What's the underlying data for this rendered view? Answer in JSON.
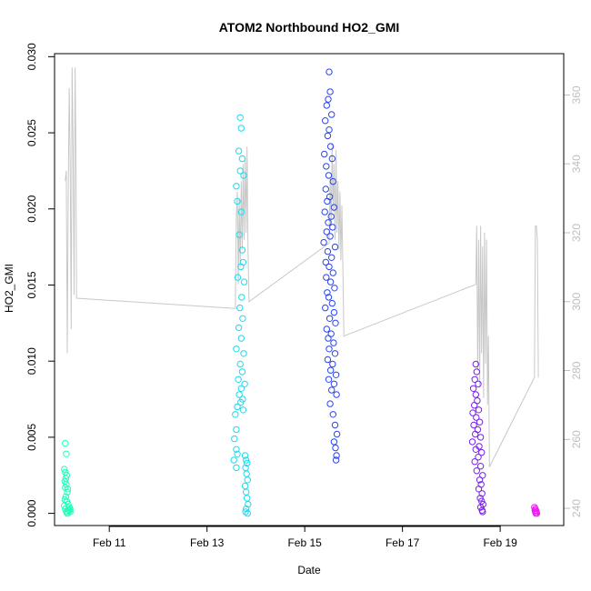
{
  "chart_data": {
    "type": "scatter",
    "title": "ATOM2 Northbound HO2_GMI",
    "xlabel": "Date",
    "ylabel": "HO2_GMI",
    "x_unit": "days (February)",
    "xlim": [
      9.88,
      20.3
    ],
    "ylim": [
      -0.0008,
      0.0302
    ],
    "yticks": [
      0.0,
      0.005,
      0.01,
      0.015,
      0.02,
      0.025,
      0.03
    ],
    "ytick_labels": [
      "0.000",
      "0.005",
      "0.010",
      "0.015",
      "0.020",
      "0.025",
      "0.030"
    ],
    "xticks": [
      11,
      13,
      15,
      17,
      19
    ],
    "xtick_labels": [
      "Feb 11",
      "Feb 13",
      "Feb 15",
      "Feb 17",
      "Feb 19"
    ],
    "y2lim": [
      235,
      372
    ],
    "y2ticks": [
      240,
      260,
      280,
      300,
      320,
      340,
      360
    ],
    "y2tick_labels": [
      "240",
      "260",
      "280",
      "300",
      "320",
      "340",
      "360"
    ],
    "grid": false,
    "point_style": "open circle",
    "colors": {
      "line": "#c8c8c8",
      "right_axis": "#bebebe",
      "axis": "#000000",
      "box": "#000000"
    },
    "series": [
      {
        "color": "#1fffb8",
        "x": [
          10.1,
          10.12,
          10.08,
          10.1,
          10.13,
          10.11,
          10.09,
          10.12,
          10.1,
          10.15,
          10.14,
          10.11,
          10.09,
          10.13,
          10.16,
          10.18,
          10.2,
          10.17,
          10.15,
          10.12,
          10.1,
          10.08,
          10.19,
          10.2,
          10.14
        ],
        "y": [
          0.0046,
          0.0039,
          0.0029,
          0.0027,
          0.0025,
          0.0023,
          0.0021,
          0.0019,
          0.0017,
          0.0016,
          0.0014,
          0.0011,
          0.0009,
          0.0008,
          0.0006,
          0.0004,
          0.0003,
          0.0002,
          0.0001,
          0.0001,
          0.0003,
          0.0005,
          0.0002,
          0.0001,
          0.0
        ]
      },
      {
        "color": "#19dcf0",
        "x": [
          13.68,
          13.7,
          13.65,
          13.72,
          13.68,
          13.75,
          13.6,
          13.62,
          13.7,
          13.66,
          13.72,
          13.74,
          13.69,
          13.63,
          13.76,
          13.71,
          13.67,
          13.73,
          13.65,
          13.7,
          13.6,
          13.75,
          13.68,
          13.72,
          13.64,
          13.77,
          13.7,
          13.66,
          13.73,
          13.69,
          13.62,
          13.74,
          13.58,
          13.6,
          13.56,
          13.6,
          13.62,
          13.55,
          13.6,
          13.78,
          13.8,
          13.82,
          13.79,
          13.81,
          13.83,
          13.78,
          13.8,
          13.82,
          13.84,
          13.8,
          13.79,
          13.83
        ],
        "y": [
          0.026,
          0.0253,
          0.0238,
          0.0233,
          0.0225,
          0.0222,
          0.0215,
          0.0205,
          0.0198,
          0.0183,
          0.0173,
          0.0165,
          0.0162,
          0.0155,
          0.0152,
          0.0142,
          0.0135,
          0.0128,
          0.0122,
          0.0115,
          0.0108,
          0.0105,
          0.0098,
          0.0093,
          0.0088,
          0.0085,
          0.0082,
          0.0078,
          0.0075,
          0.0073,
          0.007,
          0.0068,
          0.0065,
          0.0055,
          0.0049,
          0.0042,
          0.0039,
          0.0035,
          0.003,
          0.0038,
          0.0035,
          0.0033,
          0.003,
          0.0026,
          0.0022,
          0.0018,
          0.0014,
          0.001,
          0.0006,
          0.0003,
          0.0001,
          0.0
        ]
      },
      {
        "color": "#2a45f0",
        "x": [
          15.5,
          15.52,
          15.48,
          15.45,
          15.55,
          15.42,
          15.5,
          15.47,
          15.53,
          15.4,
          15.56,
          15.44,
          15.49,
          15.58,
          15.43,
          15.51,
          15.46,
          15.6,
          15.41,
          15.54,
          15.48,
          15.57,
          15.45,
          15.52,
          15.39,
          15.62,
          15.47,
          15.55,
          15.43,
          15.5,
          15.58,
          15.44,
          15.53,
          15.61,
          15.46,
          15.49,
          15.56,
          15.42,
          15.6,
          15.51,
          15.63,
          15.45,
          15.54,
          15.48,
          15.59,
          15.5,
          15.62,
          15.47,
          15.57,
          15.53,
          15.64,
          15.49,
          15.6,
          15.55,
          15.65,
          15.52,
          15.58,
          15.62,
          15.66,
          15.6,
          15.63,
          15.65,
          15.64
        ],
        "y": [
          0.029,
          0.0277,
          0.0272,
          0.0268,
          0.0262,
          0.0258,
          0.0252,
          0.0248,
          0.0241,
          0.0236,
          0.0233,
          0.0228,
          0.0222,
          0.0218,
          0.0213,
          0.0208,
          0.0205,
          0.0201,
          0.0198,
          0.0195,
          0.0191,
          0.0188,
          0.0185,
          0.0182,
          0.0178,
          0.0175,
          0.0172,
          0.0168,
          0.0165,
          0.0162,
          0.0158,
          0.0155,
          0.0152,
          0.0148,
          0.0145,
          0.0142,
          0.0138,
          0.0135,
          0.0132,
          0.0128,
          0.0125,
          0.0121,
          0.0118,
          0.0115,
          0.0112,
          0.0108,
          0.0105,
          0.0101,
          0.0098,
          0.0094,
          0.0091,
          0.0088,
          0.0085,
          0.0081,
          0.0078,
          0.0072,
          0.0065,
          0.0058,
          0.0052,
          0.0047,
          0.0043,
          0.0038,
          0.0035
        ]
      },
      {
        "color": "#7a1ff0",
        "x": [
          18.5,
          18.52,
          18.48,
          18.55,
          18.45,
          18.5,
          18.53,
          18.47,
          18.56,
          18.44,
          18.51,
          18.58,
          18.46,
          18.54,
          18.49,
          18.6,
          18.43,
          18.57,
          18.5,
          18.62,
          18.55,
          18.48,
          18.6,
          18.52,
          18.64,
          18.58,
          18.61,
          18.56,
          18.63,
          18.59,
          18.62,
          18.65,
          18.6,
          18.63,
          18.64
        ],
        "y": [
          0.0098,
          0.0093,
          0.0088,
          0.0085,
          0.0082,
          0.0078,
          0.0074,
          0.0071,
          0.0068,
          0.0066,
          0.0063,
          0.006,
          0.0058,
          0.0055,
          0.0052,
          0.005,
          0.0047,
          0.0044,
          0.0042,
          0.004,
          0.0037,
          0.0034,
          0.0031,
          0.0028,
          0.0025,
          0.0022,
          0.0019,
          0.0016,
          0.0013,
          0.001,
          0.0008,
          0.0006,
          0.0004,
          0.0002,
          0.0001
        ]
      },
      {
        "color": "#ee1ef0",
        "x": [
          19.7,
          19.72,
          19.71,
          19.73,
          19.74,
          19.72,
          19.75,
          19.73
        ],
        "y": [
          0.0004,
          0.0003,
          0.0002,
          0.0002,
          0.0001,
          0.0001,
          0.0,
          0.0
        ]
      }
    ],
    "line_series": {
      "axis": "right",
      "color": "#c8c8c8",
      "x": [
        10.1,
        10.12,
        10.14,
        10.16,
        10.18,
        10.2,
        10.22,
        10.24,
        10.26,
        10.28,
        10.3,
        10.32,
        10.33,
        13.58,
        13.6,
        13.62,
        13.64,
        13.66,
        13.68,
        13.7,
        13.72,
        13.74,
        13.76,
        13.78,
        13.8,
        13.82,
        13.84,
        13.86,
        15.5,
        15.52,
        15.54,
        15.56,
        15.58,
        15.6,
        15.62,
        15.64,
        15.66,
        15.68,
        15.7,
        15.72,
        15.74,
        15.76,
        15.78,
        15.8,
        18.5,
        18.52,
        18.54,
        18.56,
        18.58,
        18.6,
        18.62,
        18.64,
        18.66,
        18.68,
        18.7,
        18.72,
        18.74,
        18.76,
        18.78,
        19.7,
        19.72,
        19.74,
        19.76,
        19.78
      ],
      "y": [
        335,
        338,
        285,
        330,
        362,
        340,
        292,
        368,
        345,
        302,
        368,
        340,
        301,
        298,
        324,
        332,
        305,
        330,
        310,
        335,
        315,
        340,
        318,
        342,
        320,
        345,
        315,
        300,
        317,
        336,
        322,
        346,
        326,
        340,
        318,
        344,
        320,
        335,
        315,
        332,
        312,
        328,
        310,
        290,
        305,
        322,
        280,
        318,
        275,
        322,
        285,
        316,
        272,
        320,
        282,
        318,
        270,
        290,
        252,
        278,
        322,
        322,
        318,
        278
      ]
    }
  }
}
